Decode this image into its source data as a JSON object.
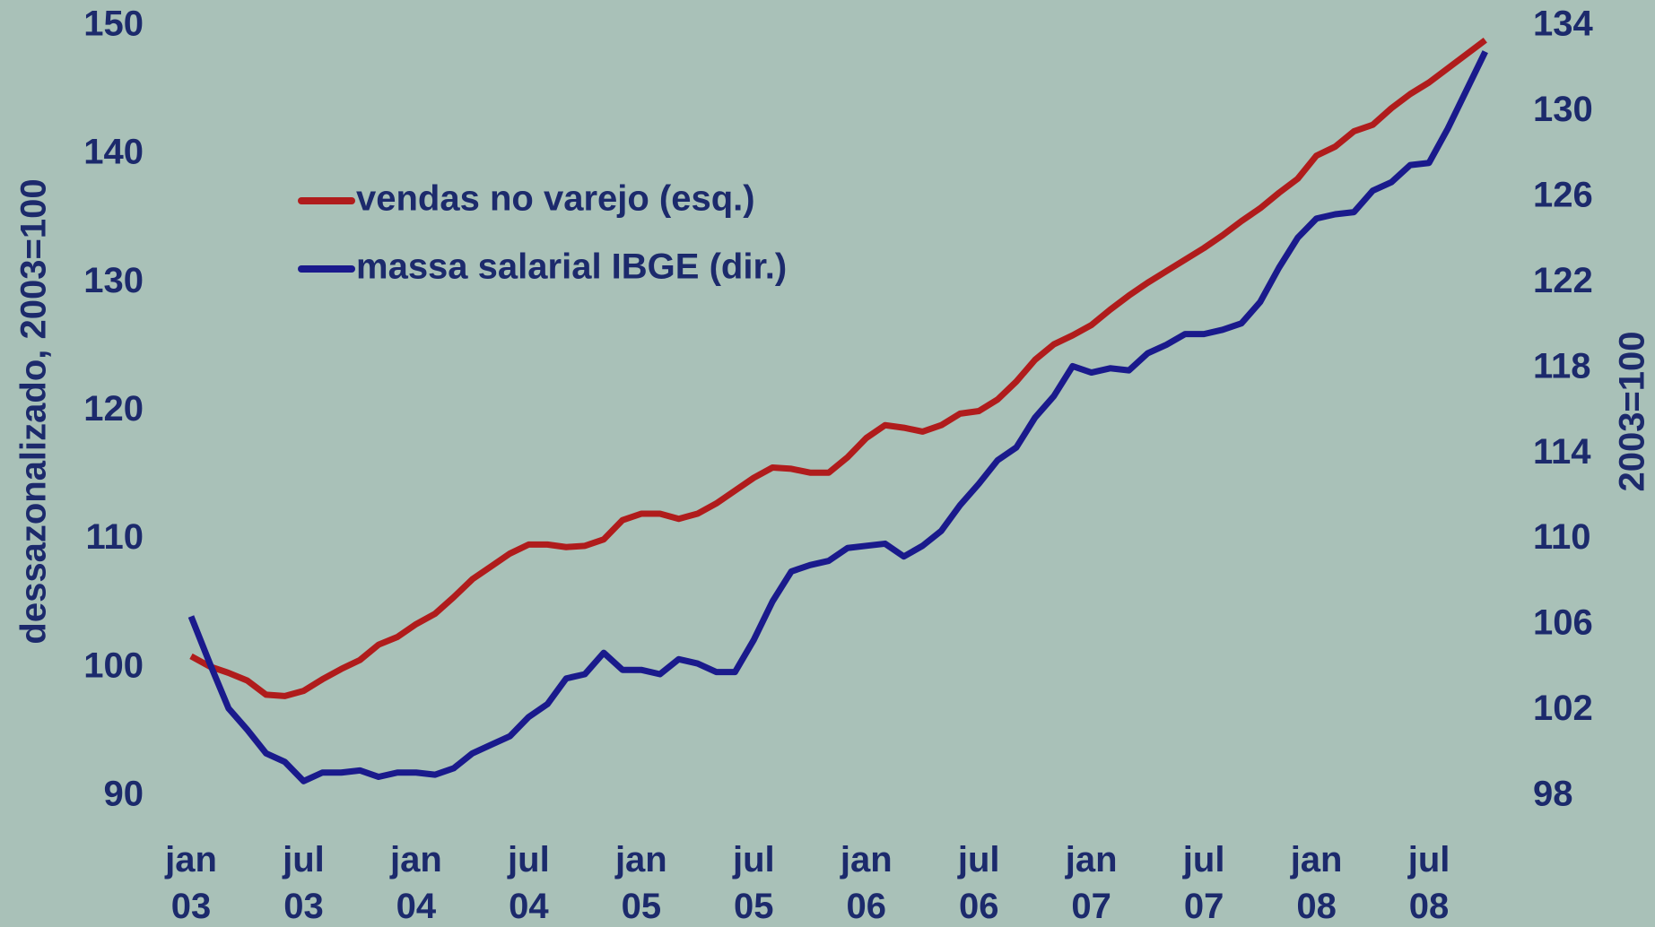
{
  "chart_data": {
    "type": "line",
    "y_label": "dessazonalizado, 2003=100",
    "y2_label": "2003=100",
    "categories": [
      "jan 03",
      null,
      null,
      null,
      null,
      null,
      "jul 03",
      null,
      null,
      null,
      null,
      null,
      "jan 04",
      null,
      null,
      null,
      null,
      null,
      "jul 04",
      null,
      null,
      null,
      null,
      null,
      "jan 05",
      null,
      null,
      null,
      null,
      null,
      "jul 05",
      null,
      null,
      null,
      null,
      null,
      "jan 06",
      null,
      null,
      null,
      null,
      null,
      "jul 06",
      null,
      null,
      null,
      null,
      null,
      "jan 07",
      null,
      null,
      null,
      null,
      null,
      "jul 07",
      null,
      null,
      null,
      null,
      null,
      "jan 08",
      null,
      null,
      null,
      null,
      null,
      "jul 08",
      null,
      null,
      null
    ],
    "series": [
      {
        "name": "vendas no varejo (esq.)",
        "color": "#b01c1c",
        "axis": "y",
        "values": [
          100.9,
          100.1,
          99.6,
          99.0,
          97.9,
          97.8,
          98.2,
          99.1,
          99.9,
          100.6,
          101.8,
          102.4,
          103.4,
          104.2,
          105.5,
          106.9,
          107.9,
          108.9,
          109.6,
          109.6,
          109.4,
          109.5,
          110.0,
          111.5,
          112.0,
          112.0,
          111.6,
          112.0,
          112.8,
          113.8,
          114.8,
          115.6,
          115.5,
          115.2,
          115.2,
          116.4,
          117.9,
          118.9,
          118.7,
          118.4,
          118.9,
          119.8,
          120.0,
          120.9,
          122.3,
          124.0,
          125.2,
          125.9,
          126.7,
          127.9,
          129.0,
          130.0,
          130.9,
          131.8,
          132.7,
          133.7,
          134.8,
          135.8,
          137.0,
          138.1,
          139.9,
          140.6,
          141.8,
          142.3,
          143.6,
          144.7,
          145.6,
          146.7,
          147.8,
          148.9
        ]
      },
      {
        "name": "massa salarial IBGE (dir.)",
        "color": "#1a1a8c",
        "axis": "y2",
        "values": [
          106.4,
          104.2,
          102.1,
          101.1,
          100.0,
          99.6,
          98.7,
          99.1,
          99.1,
          99.2,
          98.9,
          99.1,
          99.1,
          99.0,
          99.3,
          100.0,
          100.4,
          100.8,
          101.7,
          102.3,
          103.5,
          103.7,
          104.7,
          103.9,
          103.9,
          103.7,
          104.4,
          104.2,
          103.8,
          103.8,
          105.3,
          107.1,
          108.5,
          108.8,
          109.0,
          109.6,
          109.7,
          109.8,
          109.2,
          109.7,
          110.4,
          111.6,
          112.6,
          113.7,
          114.3,
          115.7,
          116.7,
          118.1,
          117.8,
          118.0,
          117.9,
          118.7,
          119.1,
          119.6,
          119.6,
          119.8,
          120.1,
          121.1,
          122.7,
          124.1,
          125.0,
          125.2,
          125.3,
          126.3,
          126.7,
          127.5,
          127.6,
          129.2,
          131.0,
          132.8
        ]
      }
    ],
    "ylim": [
      90,
      150
    ],
    "yticks": [
      90,
      100,
      110,
      120,
      130,
      140,
      150
    ],
    "y2lim": [
      98,
      134
    ],
    "y2ticks": [
      98,
      102,
      106,
      110,
      114,
      118,
      122,
      126,
      130,
      134
    ],
    "grid": false,
    "legend": "upper left"
  }
}
